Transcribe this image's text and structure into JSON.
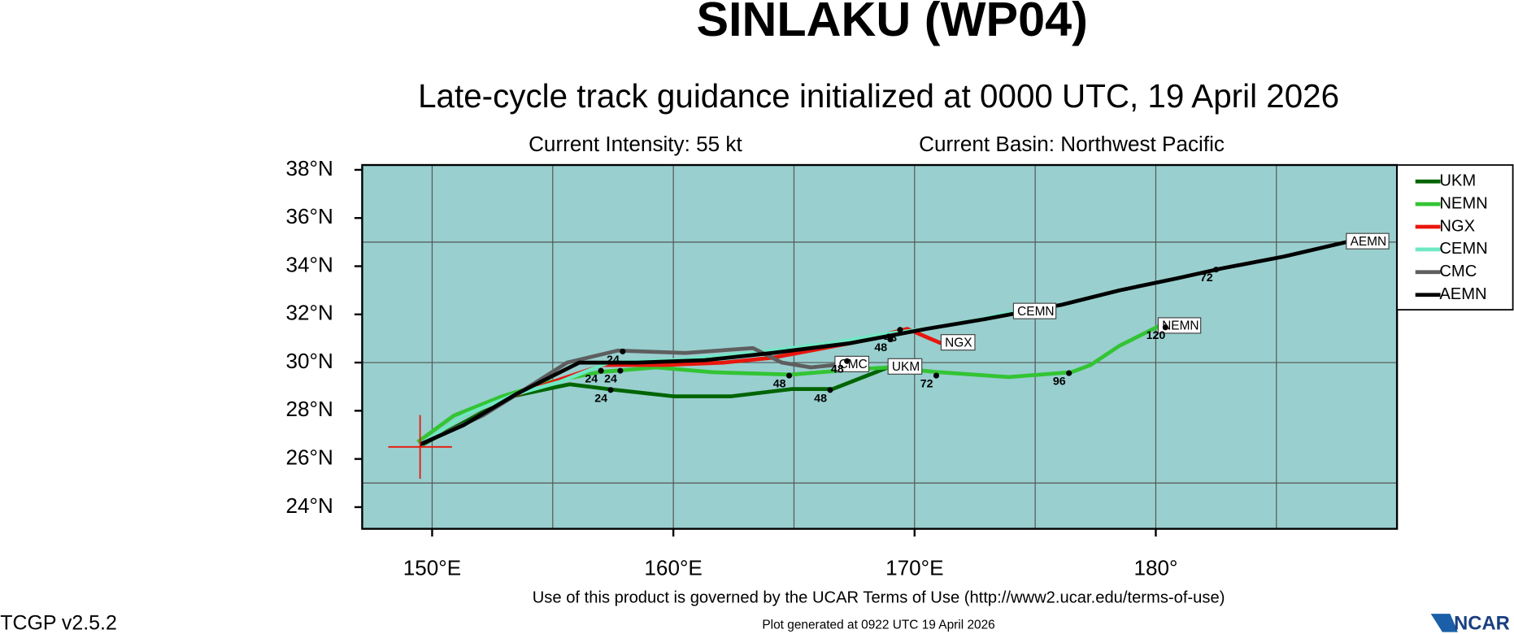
{
  "chart_data": {
    "type": "line",
    "title": "SINLAKU (WP04)",
    "subtitle": "Late-cycle track guidance initialized at 0000 UTC, 19 April 2026",
    "info_left": "Current Intensity: 55 kt",
    "info_right": "Current Basin: Northwest Pacific",
    "footer_terms": "Use of this product is governed by the UCAR Terms of Use (http://www2.ucar.edu/terms-of-use)",
    "footer_generated": "Plot generated at 0922 UTC   19 April 2026",
    "version": "TCGP v2.5.2",
    "logo": "NCAR",
    "xlim": [
      147.1,
      190
    ],
    "ylim": [
      23.1,
      38.2
    ],
    "xticks": [
      {
        "value": 150,
        "label": "150°E"
      },
      {
        "value": 160,
        "label": "160°E"
      },
      {
        "value": 170,
        "label": "170°E"
      },
      {
        "value": 180,
        "label": "180°"
      }
    ],
    "yticks": [
      {
        "value": 24,
        "label": "24°N"
      },
      {
        "value": 26,
        "label": "26°N"
      },
      {
        "value": 28,
        "label": "28°N"
      },
      {
        "value": 30,
        "label": "30°N"
      },
      {
        "value": 32,
        "label": "32°N"
      },
      {
        "value": 34,
        "label": "34°N"
      },
      {
        "value": 36,
        "label": "36°N"
      },
      {
        "value": 38,
        "label": "38°N"
      }
    ],
    "xgrid": [
      150,
      155,
      160,
      165,
      170,
      175,
      180,
      185
    ],
    "ygrid": [
      25,
      30,
      35
    ],
    "grid": true,
    "background": "#99cfcf",
    "legend": "right",
    "current_position": {
      "x": 149.5,
      "y": 26.5
    },
    "series": [
      {
        "name": "UKM",
        "color": "#006400",
        "x": [
          149.6,
          151.1,
          153.3,
          155.7,
          157.3,
          160,
          162.4,
          164.9,
          166.6,
          168.9
        ],
        "values": [
          26.6,
          27.4,
          28.6,
          29.1,
          28.9,
          28.6,
          28.6,
          28.9,
          28.9,
          29.8
        ]
      },
      {
        "name": "NEMN",
        "color": "#33c433",
        "x": [
          149.4,
          150.9,
          152.9,
          154.9,
          156.9,
          159.3,
          161.6,
          164.9,
          167.3,
          168.9,
          171,
          173.9,
          176.5,
          177.3,
          178.5,
          180.1
        ],
        "values": [
          26.7,
          27.8,
          28.6,
          29.2,
          29.6,
          29.8,
          29.6,
          29.5,
          29.7,
          29.8,
          29.6,
          29.4,
          29.6,
          29.9,
          30.7,
          31.5
        ]
      },
      {
        "name": "NGX",
        "color": "#e8160c",
        "x": [
          149.5,
          151.3,
          153.3,
          155.3,
          157.1,
          159.7,
          162.1,
          164.1,
          165.7,
          167.3,
          168.9,
          169.7,
          171.1
        ],
        "values": [
          26.6,
          27.8,
          28.6,
          29.3,
          29.9,
          29.9,
          30.0,
          30.2,
          30.5,
          30.8,
          31.2,
          31.4,
          30.8
        ]
      },
      {
        "name": "CEMN",
        "color": "#70e8c4",
        "x": [
          149.5,
          151.3,
          153.5,
          155.3,
          157.3,
          160.1,
          163.3,
          166.5,
          168.9,
          170.5,
          172.8,
          174.1
        ],
        "values": [
          26.6,
          27.8,
          28.7,
          29.2,
          30.0,
          30.1,
          30.4,
          30.8,
          31.2,
          31.4,
          31.8,
          32.1
        ]
      },
      {
        "name": "CMC",
        "color": "#5e5e5e",
        "x": [
          149.5,
          152.1,
          153.7,
          155.6,
          157.7,
          160.5,
          163.3,
          164.5,
          165.7,
          166.7
        ],
        "values": [
          26.6,
          27.8,
          28.8,
          30.0,
          30.5,
          30.4,
          30.6,
          30.0,
          29.8,
          29.9
        ]
      },
      {
        "name": "AEMN",
        "color": "#000000",
        "x": [
          149.5,
          151.3,
          153.5,
          156.1,
          158.5,
          161.3,
          164.1,
          167.3,
          170.5,
          172.9,
          176.1,
          178.5,
          180.9,
          182.7,
          185.3,
          187.9
        ],
        "values": [
          26.6,
          27.4,
          28.7,
          30.0,
          30.0,
          30.1,
          30.4,
          30.8,
          31.4,
          31.8,
          32.4,
          33.0,
          33.5,
          33.9,
          34.4,
          35.0
        ]
      }
    ],
    "annotations": [
      {
        "text": "24",
        "x": 157.0,
        "y": 28.7
      },
      {
        "text": "24",
        "x": 156.6,
        "y": 29.5
      },
      {
        "text": "24",
        "x": 157.4,
        "y": 29.5
      },
      {
        "text": "24",
        "x": 157.5,
        "y": 30.3
      },
      {
        "text": "48",
        "x": 164.4,
        "y": 29.3
      },
      {
        "text": "48",
        "x": 166.1,
        "y": 28.7
      },
      {
        "text": "48",
        "x": 166.8,
        "y": 29.9
      },
      {
        "text": "48",
        "x": 168.6,
        "y": 30.8
      },
      {
        "text": "48",
        "x": 169.0,
        "y": 31.2
      },
      {
        "text": "72",
        "x": 170.5,
        "y": 29.3
      },
      {
        "text": "72",
        "x": 182.1,
        "y": 33.7
      },
      {
        "text": "96",
        "x": 176.0,
        "y": 29.4
      },
      {
        "text": "120",
        "x": 180.0,
        "y": 31.3
      }
    ]
  }
}
